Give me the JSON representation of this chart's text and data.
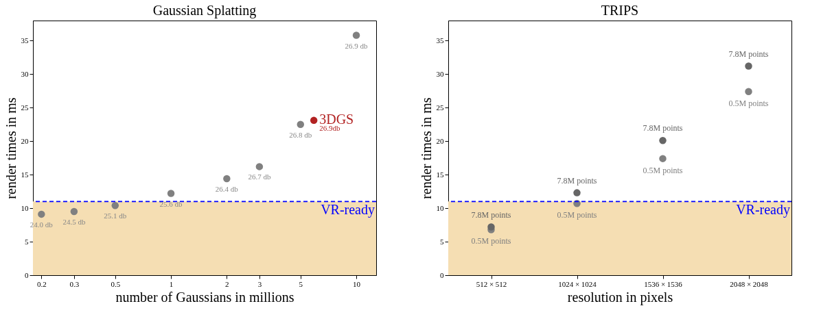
{
  "chart_data": [
    {
      "type": "scatter",
      "title": "Gaussian Splatting",
      "xlabel": "number of Gaussians in millions",
      "ylabel": "render times in ms",
      "log": "x",
      "xlim": [
        0.18,
        12.8
      ],
      "xticks": [
        0.2,
        0.3,
        0.5,
        1,
        2,
        3,
        5,
        10
      ],
      "ylim": [
        0,
        38
      ],
      "yticks": [
        0,
        5,
        10,
        15,
        20,
        25,
        30,
        35
      ],
      "grid": false,
      "legend": false,
      "marker": "circle",
      "series": [
        {
          "color": "#808080",
          "x": [
            0.2,
            0.3,
            0.5,
            1,
            2,
            3,
            5,
            10
          ],
          "values": [
            9.1,
            9.5,
            10.4,
            12.2,
            14.4,
            16.2,
            22.5,
            35.8
          ]
        },
        {
          "name": "3DGS",
          "color": "#b22222",
          "x": [
            5.9
          ],
          "values": [
            23.1
          ]
        }
      ],
      "annotations": [
        {
          "text": "24.0 db",
          "x": 0.2,
          "y": 9.1
        },
        {
          "text": "24.5 db",
          "x": 0.3,
          "y": 9.5
        },
        {
          "text": "25.1 db",
          "x": 0.5,
          "y": 10.4
        },
        {
          "text": "25.6 db",
          "x": 1,
          "y": 12.2
        },
        {
          "text": "26.4 db",
          "x": 2,
          "y": 14.4
        },
        {
          "text": "26.7 db",
          "x": 3,
          "y": 16.2
        },
        {
          "text": "26.8 db",
          "x": 5,
          "y": 22.5
        },
        {
          "text": "26.9 db",
          "x": 10,
          "y": 35.8
        },
        {
          "text": "26.9db",
          "x": 5.9,
          "y": 23.1
        }
      ],
      "ref_lines": [
        {
          "axis": "y",
          "value": 11,
          "label": "VR-ready",
          "color": "#0000ff",
          "line_style": "dashed"
        }
      ],
      "bands": [
        {
          "axis": "y",
          "from": 0,
          "to": 11,
          "color": "#f5deb3"
        }
      ]
    },
    {
      "type": "scatter",
      "title": "TRIPS",
      "xlabel": "resolution in pixels",
      "ylabel": "render times in ms",
      "categories": [
        "512 × 512",
        "1024 × 1024",
        "1536 × 1536",
        "2048 × 2048"
      ],
      "ylim": [
        0,
        38
      ],
      "yticks": [
        0,
        5,
        10,
        15,
        20,
        25,
        30,
        35
      ],
      "grid": false,
      "legend": false,
      "marker": "circle",
      "series": [
        {
          "name": "7.8M points",
          "color": "#666666",
          "values": [
            7.2,
            12.3,
            20.1,
            31.2
          ]
        },
        {
          "name": "0.5M points",
          "color": "#808080",
          "values": [
            6.8,
            10.7,
            17.4,
            27.4
          ]
        }
      ],
      "ref_lines": [
        {
          "axis": "y",
          "value": 11,
          "label": "VR-ready",
          "color": "#0000ff",
          "line_style": "dashed"
        }
      ],
      "bands": [
        {
          "axis": "y",
          "from": 0,
          "to": 11,
          "color": "#f5deb3"
        }
      ]
    }
  ]
}
